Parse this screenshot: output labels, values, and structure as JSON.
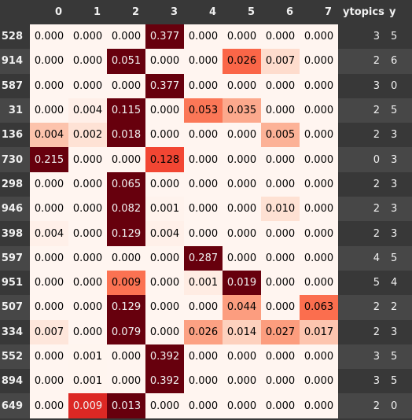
{
  "colors": {
    "text_dark": "#000000",
    "text_light": "#f1f1f1",
    "heat_low": "#fff5f0",
    "heat_mid": "#fb6a4a",
    "heat_high": "#67000d"
  },
  "columns": [
    "0",
    "1",
    "2",
    "3",
    "4",
    "5",
    "6",
    "7",
    "ytopics",
    "y"
  ],
  "rows": [
    {
      "index": "528",
      "values": [
        "0.000",
        "0.000",
        "0.000",
        "0.377",
        "0.000",
        "0.000",
        "0.000",
        "0.000"
      ],
      "ytopics": "3",
      "y": "5"
    },
    {
      "index": "914",
      "values": [
        "0.000",
        "0.000",
        "0.051",
        "0.000",
        "0.000",
        "0.026",
        "0.007",
        "0.000"
      ],
      "ytopics": "2",
      "y": "6"
    },
    {
      "index": "587",
      "values": [
        "0.000",
        "0.000",
        "0.000",
        "0.377",
        "0.000",
        "0.000",
        "0.000",
        "0.000"
      ],
      "ytopics": "3",
      "y": "0"
    },
    {
      "index": "31",
      "values": [
        "0.000",
        "0.004",
        "0.115",
        "0.000",
        "0.053",
        "0.035",
        "0.000",
        "0.000"
      ],
      "ytopics": "2",
      "y": "5"
    },
    {
      "index": "136",
      "values": [
        "0.004",
        "0.002",
        "0.018",
        "0.000",
        "0.000",
        "0.000",
        "0.005",
        "0.000"
      ],
      "ytopics": "2",
      "y": "3"
    },
    {
      "index": "730",
      "values": [
        "0.215",
        "0.000",
        "0.000",
        "0.128",
        "0.000",
        "0.000",
        "0.000",
        "0.000"
      ],
      "ytopics": "0",
      "y": "3"
    },
    {
      "index": "298",
      "values": [
        "0.000",
        "0.000",
        "0.065",
        "0.000",
        "0.000",
        "0.000",
        "0.000",
        "0.000"
      ],
      "ytopics": "2",
      "y": "3"
    },
    {
      "index": "946",
      "values": [
        "0.000",
        "0.000",
        "0.082",
        "0.001",
        "0.000",
        "0.000",
        "0.010",
        "0.000"
      ],
      "ytopics": "2",
      "y": "3"
    },
    {
      "index": "398",
      "values": [
        "0.004",
        "0.000",
        "0.129",
        "0.004",
        "0.000",
        "0.000",
        "0.000",
        "0.000"
      ],
      "ytopics": "2",
      "y": "3"
    },
    {
      "index": "597",
      "values": [
        "0.000",
        "0.000",
        "0.000",
        "0.000",
        "0.287",
        "0.000",
        "0.000",
        "0.000"
      ],
      "ytopics": "4",
      "y": "5"
    },
    {
      "index": "951",
      "values": [
        "0.000",
        "0.000",
        "0.009",
        "0.000",
        "0.001",
        "0.019",
        "0.000",
        "0.000"
      ],
      "ytopics": "5",
      "y": "4"
    },
    {
      "index": "507",
      "values": [
        "0.000",
        "0.000",
        "0.129",
        "0.000",
        "0.000",
        "0.044",
        "0.000",
        "0.063"
      ],
      "ytopics": "2",
      "y": "2"
    },
    {
      "index": "334",
      "values": [
        "0.007",
        "0.000",
        "0.079",
        "0.000",
        "0.026",
        "0.014",
        "0.027",
        "0.017"
      ],
      "ytopics": "2",
      "y": "3"
    },
    {
      "index": "552",
      "values": [
        "0.000",
        "0.001",
        "0.000",
        "0.392",
        "0.000",
        "0.000",
        "0.000",
        "0.000"
      ],
      "ytopics": "3",
      "y": "5"
    },
    {
      "index": "894",
      "values": [
        "0.000",
        "0.001",
        "0.000",
        "0.392",
        "0.000",
        "0.000",
        "0.000",
        "0.000"
      ],
      "ytopics": "3",
      "y": "5"
    },
    {
      "index": "649",
      "values": [
        "0.000",
        "0.009",
        "0.013",
        "0.000",
        "0.000",
        "0.000",
        "0.000",
        "0.000"
      ],
      "ytopics": "2",
      "y": "0"
    }
  ]
}
